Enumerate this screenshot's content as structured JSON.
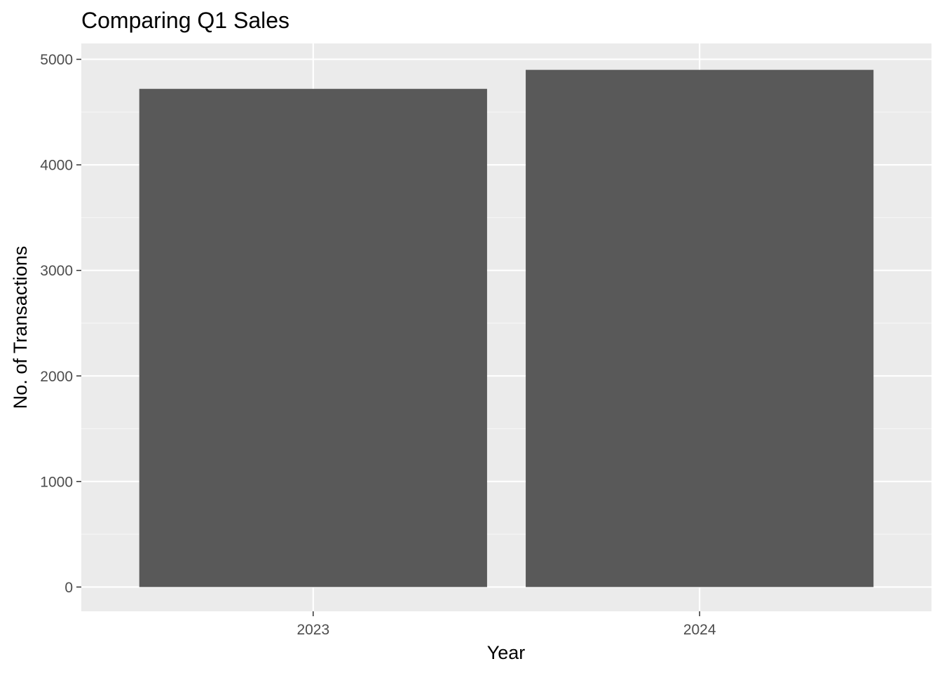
{
  "chart_data": {
    "type": "bar",
    "title": "Comparing Q1 Sales",
    "xlabel": "Year",
    "ylabel": "No. of Transactions",
    "categories": [
      "2023",
      "2024"
    ],
    "values": [
      4720,
      4900
    ],
    "ylim": [
      -230,
      5150
    ],
    "yticks": [
      0,
      1000,
      2000,
      3000,
      4000,
      5000
    ],
    "ytick_labels": [
      "0",
      "1000",
      "2000",
      "3000",
      "4000",
      "5000"
    ],
    "grid": true,
    "legend": "none",
    "colors": {
      "bar": "#595959",
      "panel": "#ebebeb",
      "grid_major": "#ffffff",
      "grid_minor": "#f5f5f5",
      "tick_text": "#4d4d4d",
      "tick_mark": "#333333"
    }
  }
}
